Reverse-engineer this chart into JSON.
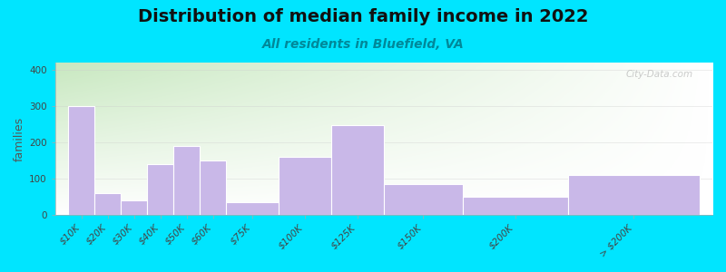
{
  "title": "Distribution of median family income in 2022",
  "subtitle": "All residents in Bluefield, VA",
  "ylabel": "families",
  "bar_color": "#c9b8e8",
  "background_outer": "#00e5ff",
  "background_plot_top_left": "#c8e6c0",
  "background_plot_top_right": "#ddeeff",
  "background_plot_bottom": "#ffffff",
  "title_fontsize": 14,
  "subtitle_fontsize": 10,
  "subtitle_color": "#008899",
  "ylabel_fontsize": 9,
  "tick_fontsize": 7.5,
  "yticks": [
    0,
    100,
    200,
    300,
    400
  ],
  "ylim": [
    0,
    420
  ],
  "watermark": "City-Data.com",
  "categories": [
    "$10K",
    "$20K",
    "$30K",
    "$40K",
    "$50K",
    "$60K",
    "$75K",
    "$100K",
    "$125K",
    "$150K",
    "$200K",
    "> $200K"
  ],
  "values": [
    300,
    60,
    40,
    140,
    190,
    150,
    35,
    160,
    248,
    85,
    50,
    110
  ],
  "bin_starts": [
    0,
    1,
    2,
    3,
    4,
    5,
    6,
    8,
    10,
    12,
    15,
    19
  ],
  "bin_widths": [
    1,
    1,
    1,
    1,
    1,
    1,
    2,
    2,
    2,
    3,
    4,
    5
  ],
  "xtick_positions": [
    0.5,
    1.5,
    2.5,
    3.5,
    4.5,
    5.5,
    7,
    9,
    11,
    13.5,
    17,
    21.5
  ],
  "total_width": 24
}
